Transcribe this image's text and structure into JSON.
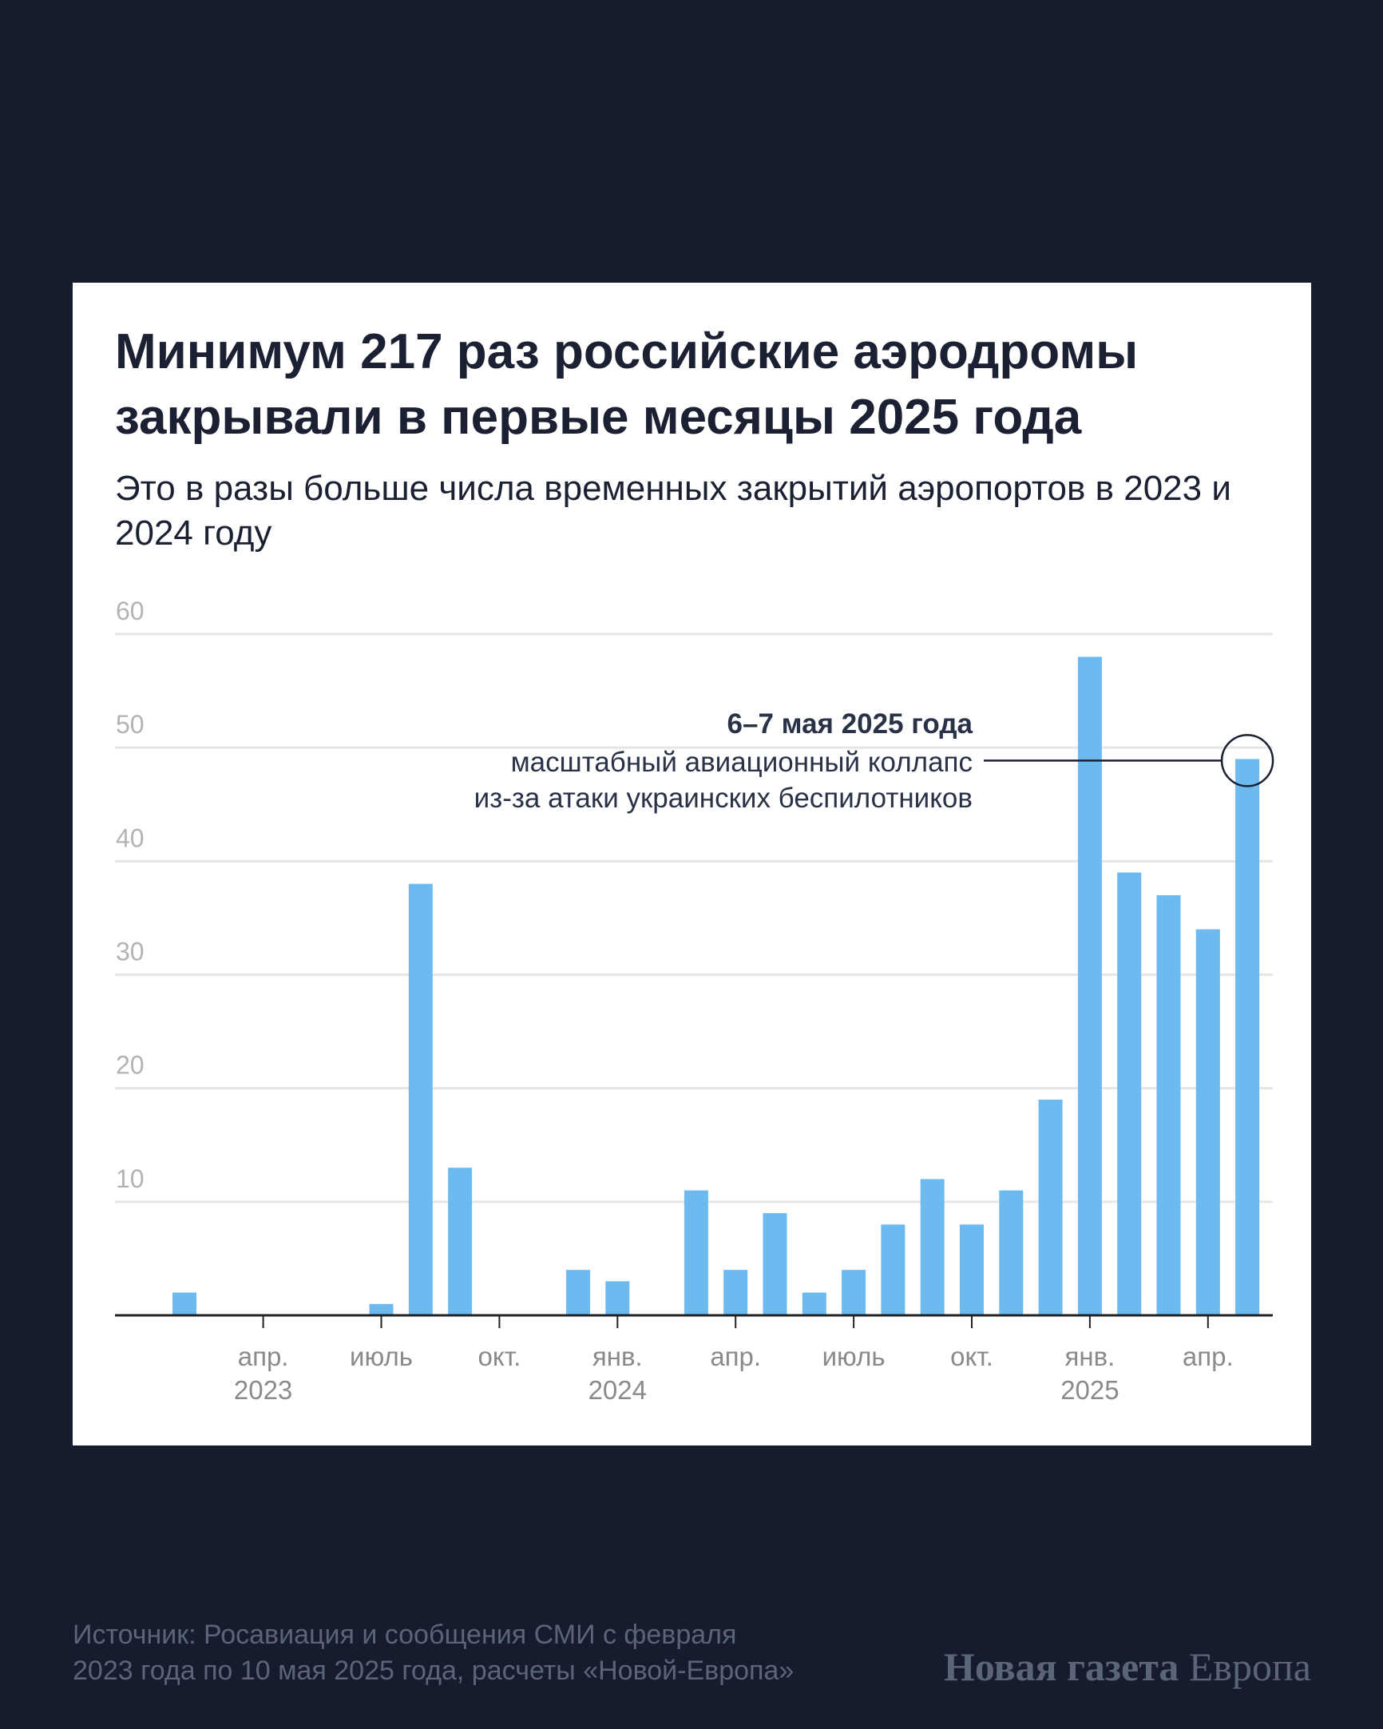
{
  "title": "Минимум 217 раз российские аэродромы закрывали в первые месяцы 2025 года",
  "subtitle": "Это в разы больше числа временных закрытий аэропортов в 2023 и 2024 году",
  "chart_data": {
    "type": "bar",
    "categories": [
      "2023-02",
      "2023-03",
      "2023-04",
      "2023-05",
      "2023-06",
      "2023-07",
      "2023-08",
      "2023-09",
      "2023-10",
      "2023-11",
      "2023-12",
      "2024-01",
      "2024-02",
      "2024-03",
      "2024-04",
      "2024-05",
      "2024-06",
      "2024-07",
      "2024-08",
      "2024-09",
      "2024-10",
      "2024-11",
      "2024-12",
      "2025-01",
      "2025-02",
      "2025-03",
      "2025-04",
      "2025-05"
    ],
    "values": [
      2,
      0,
      0,
      0,
      0,
      1,
      38,
      13,
      0,
      0,
      4,
      3,
      0,
      11,
      4,
      9,
      2,
      4,
      8,
      12,
      8,
      11,
      19,
      58,
      39,
      37,
      34,
      49
    ],
    "ylim": [
      0,
      60
    ],
    "yticks": [
      "10",
      "20",
      "30",
      "40",
      "50",
      "60"
    ],
    "xticks": [
      {
        "category": "2023-04",
        "label": "апр.",
        "year": "2023"
      },
      {
        "category": "2023-07",
        "label": "июль",
        "year": ""
      },
      {
        "category": "2023-10",
        "label": "окт.",
        "year": ""
      },
      {
        "category": "2024-01",
        "label": "янв.",
        "year": "2024"
      },
      {
        "category": "2024-04",
        "label": "апр.",
        "year": ""
      },
      {
        "category": "2024-07",
        "label": "июль",
        "year": ""
      },
      {
        "category": "2024-10",
        "label": "окт.",
        "year": ""
      },
      {
        "category": "2025-01",
        "label": "янв.",
        "year": "2025"
      },
      {
        "category": "2025-04",
        "label": "апр.",
        "year": ""
      }
    ],
    "grid": true,
    "bar_color": "#6dbaf0",
    "annotation": {
      "category": "2025-05",
      "title": "6–7 мая 2025 года",
      "lines": [
        "масштабный авиационный коллапс",
        "из-за атаки украинских беспилотников"
      ]
    }
  },
  "footer": {
    "source_line1": "Источник: Росавиация и сообщения СМИ с февраля",
    "source_line2": "2023 года по 10 мая 2025 года, расчеты «Новой-Европа»",
    "logo_bold": "Новая газета",
    "logo_regular": "Европа"
  }
}
